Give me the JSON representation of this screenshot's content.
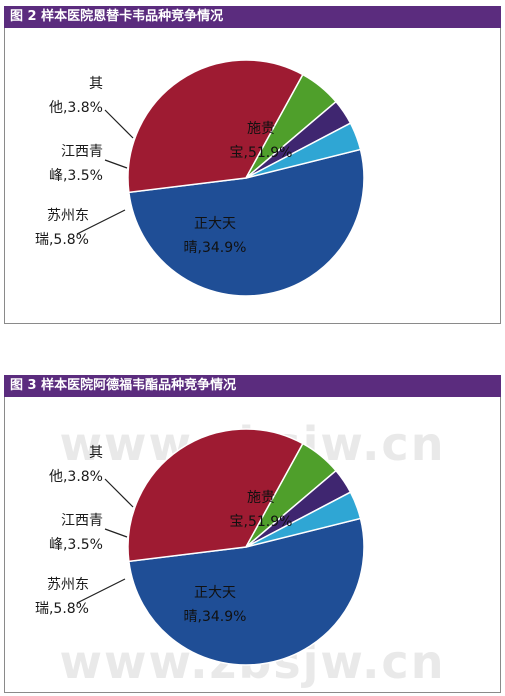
{
  "watermark": "www.zbsjw.cn",
  "chart_data": [
    {
      "type": "pie",
      "title": "图 2   样本医院恩替卡韦品种竞争情况",
      "slices": [
        {
          "name": "施贵宝",
          "label_lines": [
            "施贵",
            "宝,51.9%"
          ],
          "value": 51.9,
          "color": "#1f4e96"
        },
        {
          "name": "正大天晴",
          "label_lines": [
            "正大天",
            "晴,34.9%"
          ],
          "value": 34.9,
          "color": "#9e1b32"
        },
        {
          "name": "苏州东瑞",
          "label_lines": [
            "苏州东",
            "瑞,5.8%"
          ],
          "value": 5.8,
          "color": "#4f9f2b"
        },
        {
          "name": "江西青峰",
          "label_lines": [
            "江西青",
            "峰,3.5%"
          ],
          "value": 3.5,
          "color": "#3f2670"
        },
        {
          "name": "其他",
          "label_lines": [
            "其",
            "他,3.8%"
          ],
          "value": 3.8,
          "color": "#2fa6d4"
        }
      ]
    },
    {
      "type": "pie",
      "title": "图 3   样本医院阿德福韦酯品种竞争情况",
      "slices": [
        {
          "name": "施贵宝",
          "label_lines": [
            "施贵",
            "宝,51.9%"
          ],
          "value": 51.9,
          "color": "#1f4e96"
        },
        {
          "name": "正大天晴",
          "label_lines": [
            "正大天",
            "晴,34.9%"
          ],
          "value": 34.9,
          "color": "#9e1b32"
        },
        {
          "name": "苏州东瑞",
          "label_lines": [
            "苏州东",
            "瑞,5.8%"
          ],
          "value": 5.8,
          "color": "#4f9f2b"
        },
        {
          "name": "江西青峰",
          "label_lines": [
            "江西青",
            "峰,3.5%"
          ],
          "value": 3.5,
          "color": "#3f2670"
        },
        {
          "name": "其他",
          "label_lines": [
            "其",
            "他,3.8%"
          ],
          "value": 3.8,
          "color": "#2fa6d4"
        }
      ]
    }
  ]
}
